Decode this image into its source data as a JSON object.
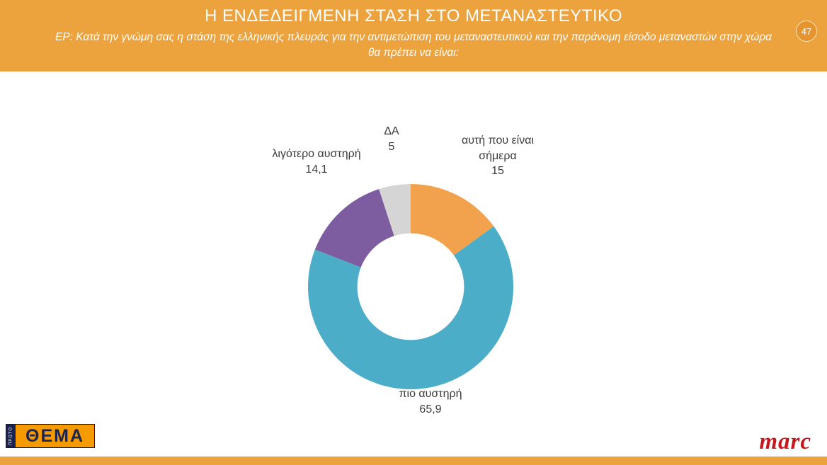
{
  "header": {
    "title": "Η ΕΝΔΕΔΕΙΓΜΕΝΗ ΣΤΑΣΗ ΣΤΟ ΜΕΤΑΝΑΣΤΕΥΤΙΚΟ",
    "subtitle": "ΕΡ: Κατά την γνώμη σας η στάση της ελληνικής πλευράς για την αντιμετώπιση του μεταναστευτικού και την παράνομη είσοδο μεταναστών στην χώρα θα πρέπει να είναι:",
    "page_number": "47"
  },
  "chart_data": {
    "type": "pie",
    "subtype": "donut",
    "title": "Η ΕΝΔΕΔΕΙΓΜΕΝΗ ΣΤΑΣΗ ΣΤΟ ΜΕΤΑΝΑΣΤΕΥΤΙΚΟ",
    "legend_position": "none",
    "direction": "clockwise",
    "start_angle_deg": 0,
    "inner_radius_ratio": 0.52,
    "segments": [
      {
        "label": "αυτή που είναι σήμερα",
        "value": 15,
        "display_value": "15",
        "color": "#F2A24C"
      },
      {
        "label": "πιο αυστηρή",
        "value": 65.9,
        "display_value": "65,9",
        "color": "#4BADC7"
      },
      {
        "label": "λιγότερο αυστηρή",
        "value": 14.1,
        "display_value": "14,1",
        "color": "#7D5C9F"
      },
      {
        "label": "ΔΑ",
        "value": 5,
        "display_value": "5",
        "color": "#D5D5D5"
      }
    ]
  },
  "footer": {
    "left_logo_vertical": "ΠΡΩΤΟ",
    "left_logo_text": "ΘΕΜΑ",
    "right_logo_text": "marc"
  },
  "colors": {
    "banner": "#ECA23D",
    "badge": "#E6952E",
    "label_text": "#3B3B3B"
  }
}
